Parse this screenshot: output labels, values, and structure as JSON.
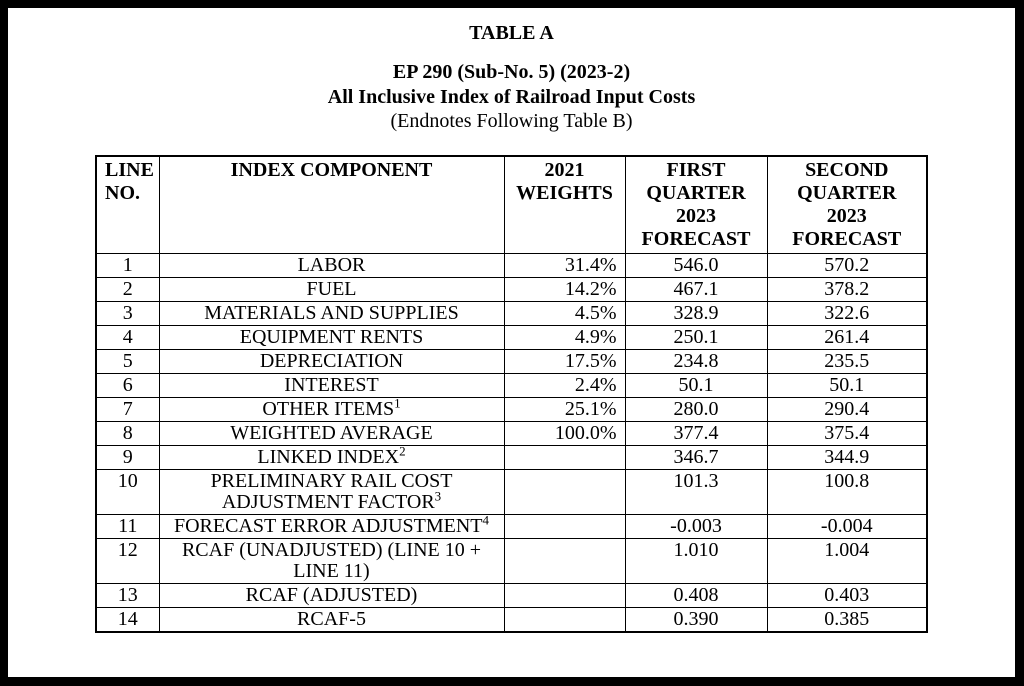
{
  "header": {
    "table_label": "TABLE A",
    "docket": "EP 290 (Sub-No. 5) (2023-2)",
    "title": "All Inclusive Index of Railroad Input Costs",
    "endnote_ref": "(Endnotes Following Table B)"
  },
  "table": {
    "columns": [
      "LINE\nNO.",
      "INDEX COMPONENT",
      "2021\nWEIGHTS",
      "FIRST\nQUARTER\n2023\nFORECAST",
      "SECOND\nQUARTER\n2023\nFORECAST"
    ],
    "rows": [
      {
        "line_no": "1",
        "component": "LABOR",
        "sup": "",
        "weight": "31.4%",
        "q1_forecast": "546.0",
        "q2_forecast": "570.2"
      },
      {
        "line_no": "2",
        "component": "FUEL",
        "sup": "",
        "weight": "14.2%",
        "q1_forecast": "467.1",
        "q2_forecast": "378.2"
      },
      {
        "line_no": "3",
        "component": "MATERIALS AND SUPPLIES",
        "sup": "",
        "weight": "4.5%",
        "q1_forecast": "328.9",
        "q2_forecast": "322.6"
      },
      {
        "line_no": "4",
        "component": "EQUIPMENT RENTS",
        "sup": "",
        "weight": "4.9%",
        "q1_forecast": "250.1",
        "q2_forecast": "261.4"
      },
      {
        "line_no": "5",
        "component": "DEPRECIATION",
        "sup": "",
        "weight": "17.5%",
        "q1_forecast": "234.8",
        "q2_forecast": "235.5"
      },
      {
        "line_no": "6",
        "component": "INTEREST",
        "sup": "",
        "weight": "2.4%",
        "q1_forecast": "50.1",
        "q2_forecast": "50.1"
      },
      {
        "line_no": "7",
        "component": "OTHER ITEMS",
        "sup": "1",
        "weight": "25.1%",
        "q1_forecast": "280.0",
        "q2_forecast": "290.4"
      },
      {
        "line_no": "8",
        "component": "WEIGHTED AVERAGE",
        "sup": "",
        "weight": "100.0%",
        "q1_forecast": "377.4",
        "q2_forecast": "375.4"
      },
      {
        "line_no": "9",
        "component": "LINKED INDEX",
        "sup": "2",
        "weight": "",
        "q1_forecast": "346.7",
        "q2_forecast": "344.9"
      },
      {
        "line_no": "10",
        "component": "PRELIMINARY RAIL COST\nADJUSTMENT FACTOR",
        "sup": "3",
        "weight": "",
        "q1_forecast": "101.3",
        "q2_forecast": "100.8"
      },
      {
        "line_no": "11",
        "component": "FORECAST ERROR ADJUSTMENT",
        "sup": "4",
        "weight": "",
        "q1_forecast": "-0.003",
        "q2_forecast": "-0.004"
      },
      {
        "line_no": "12",
        "component": "RCAF (UNADJUSTED) (LINE 10 +\nLINE 11)",
        "sup": "",
        "weight": "",
        "q1_forecast": "1.010",
        "q2_forecast": "1.004"
      },
      {
        "line_no": "13",
        "component": "RCAF (ADJUSTED)",
        "sup": "",
        "weight": "",
        "q1_forecast": "0.408",
        "q2_forecast": "0.403"
      },
      {
        "line_no": "14",
        "component": "RCAF-5",
        "sup": "",
        "weight": "",
        "q1_forecast": "0.390",
        "q2_forecast": "0.385"
      }
    ]
  },
  "colors": {
    "frame": "#000000",
    "page_background": "#ffffff",
    "text": "#000000",
    "border": "#000000"
  }
}
